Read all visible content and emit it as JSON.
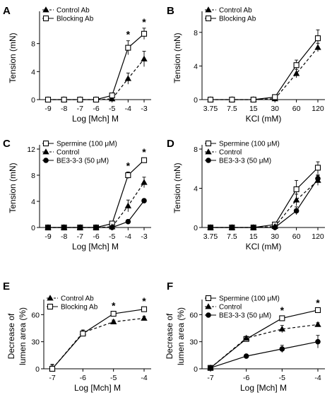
{
  "chart_data": [
    {
      "panel": "A",
      "type": "line",
      "xlabel": "Log [Mch] M",
      "ylabel": "Tension (mN)",
      "categories": [
        "-9",
        "-8",
        "-7",
        "-6",
        "-5",
        "-4",
        "-3"
      ],
      "ylim": [
        0,
        12
      ],
      "yticks": [
        0,
        4,
        8
      ],
      "legend": "top-left",
      "series": [
        {
          "name": "Control Ab",
          "marker": "triangle",
          "style": "dashed",
          "values": [
            0,
            0,
            0,
            0,
            0.1,
            3.0,
            5.8
          ],
          "errors": [
            0,
            0,
            0,
            0,
            0.1,
            0.8,
            1.1
          ]
        },
        {
          "name": "Blocking Ab",
          "marker": "square",
          "style": "solid",
          "values": [
            0,
            0,
            0,
            0,
            0.6,
            7.4,
            9.4
          ],
          "errors": [
            0,
            0,
            0,
            0,
            0.3,
            1.0,
            0.8
          ]
        }
      ],
      "significance": [
        {
          "x": "-4",
          "label": "*"
        },
        {
          "x": "-3",
          "label": "*"
        }
      ]
    },
    {
      "panel": "B",
      "type": "line",
      "xlabel": "KCl (mM)",
      "ylabel": "Tension (mN)",
      "categories": [
        "3.75",
        "7.5",
        "15",
        "30",
        "60",
        "120"
      ],
      "ylim": [
        0,
        10
      ],
      "yticks": [
        0,
        4,
        8
      ],
      "legend": "top-left",
      "series": [
        {
          "name": "Control Ab",
          "marker": "triangle",
          "style": "dashed",
          "values": [
            0,
            0,
            0,
            0.1,
            3.1,
            6.2
          ],
          "errors": [
            0,
            0,
            0,
            0.1,
            0.5,
            0.5
          ]
        },
        {
          "name": "Blocking Ab",
          "marker": "square",
          "style": "solid",
          "values": [
            0,
            0,
            0,
            0.3,
            4.1,
            7.3
          ],
          "errors": [
            0,
            0,
            0,
            0.2,
            0.6,
            1.0
          ]
        }
      ],
      "significance": []
    },
    {
      "panel": "C",
      "type": "line",
      "xlabel": "Log [Mch] M",
      "ylabel": "Tension (mN)",
      "categories": [
        "-9",
        "-8",
        "-7",
        "-6",
        "-5",
        "-4",
        "-3"
      ],
      "ylim": [
        0,
        12
      ],
      "yticks": [
        0,
        4,
        8,
        12
      ],
      "legend": "top-left",
      "series": [
        {
          "name": "Spermine (100 μM)",
          "marker": "square",
          "style": "solid",
          "values": [
            0,
            0,
            0,
            0,
            0.6,
            8.0,
            10.3
          ],
          "errors": [
            0,
            0,
            0,
            0,
            0.2,
            0.5,
            0.3
          ]
        },
        {
          "name": "Control",
          "marker": "triangle",
          "style": "dashed",
          "values": [
            0,
            0,
            0,
            0,
            0.1,
            3.3,
            6.9
          ],
          "errors": [
            0,
            0,
            0,
            0,
            0.1,
            0.9,
            0.8
          ]
        },
        {
          "name": "BE3-3-3 (50 μM)",
          "marker": "circle",
          "style": "solid",
          "values": [
            0,
            0,
            0,
            0,
            0,
            0.9,
            4.1
          ],
          "errors": [
            0,
            0,
            0,
            0,
            0,
            0.3,
            0.2
          ]
        }
      ],
      "significance": [
        {
          "x": "-4",
          "label": "*"
        },
        {
          "x": "-3",
          "label": "*"
        }
      ]
    },
    {
      "panel": "D",
      "type": "line",
      "xlabel": "KCl (mM)",
      "ylabel": "Tension (mN)",
      "categories": [
        "3.75",
        "7.5",
        "15",
        "30",
        "60",
        "120"
      ],
      "ylim": [
        0,
        8
      ],
      "yticks": [
        0,
        4,
        8
      ],
      "legend": "top-left",
      "series": [
        {
          "name": "Spermine (100 μM)",
          "marker": "square",
          "style": "solid",
          "values": [
            0,
            0,
            0,
            0.3,
            3.9,
            6.1
          ],
          "errors": [
            0,
            0,
            0,
            0.2,
            0.9,
            0.6
          ]
        },
        {
          "name": "Control",
          "marker": "triangle",
          "style": "dashed",
          "values": [
            0,
            0,
            0,
            0.1,
            2.8,
            4.8
          ],
          "errors": [
            0,
            0,
            0,
            0.1,
            0.6,
            0.5
          ]
        },
        {
          "name": "BE3-3-3 (50 μM)",
          "marker": "circle",
          "style": "solid",
          "values": [
            0,
            0,
            0,
            0,
            1.7,
            5.0
          ],
          "errors": [
            0,
            0,
            0,
            0,
            0.4,
            0.4
          ]
        }
      ],
      "significance": []
    },
    {
      "panel": "E",
      "type": "line",
      "xlabel": "Log [Mch] M",
      "ylabel": "Decrease of\nlumen area (%)",
      "categories": [
        "-7",
        "-6",
        "-5",
        "-4"
      ],
      "ylim": [
        0,
        72
      ],
      "yticks": [
        0,
        30,
        60
      ],
      "legend": "top-left",
      "series": [
        {
          "name": "Control Ab",
          "marker": "triangle",
          "style": "dashed",
          "values": [
            0,
            40,
            52,
            56
          ],
          "errors": [
            5,
            3,
            2,
            2
          ]
        },
        {
          "name": "Blocking Ab",
          "marker": "square",
          "style": "solid",
          "values": [
            0,
            39,
            61,
            66
          ],
          "errors": [
            4,
            3,
            2,
            2
          ]
        }
      ],
      "significance": [
        {
          "x": "-5",
          "label": "*"
        },
        {
          "x": "-4",
          "label": "*"
        }
      ]
    },
    {
      "panel": "F",
      "type": "line",
      "xlabel": "Log [Mch] M",
      "ylabel": "Decrease of\nlumen area (%)",
      "categories": [
        "-7",
        "-6",
        "-5",
        "-4"
      ],
      "ylim": [
        0,
        72
      ],
      "yticks": [
        0,
        30,
        60
      ],
      "legend": "top-left",
      "series": [
        {
          "name": "Spermine (100 μM)",
          "marker": "square",
          "style": "solid",
          "values": [
            1,
            33,
            56,
            65
          ],
          "errors": [
            1,
            2,
            2,
            1
          ]
        },
        {
          "name": "Control",
          "marker": "triangle",
          "style": "dashed",
          "values": [
            1,
            34,
            44,
            49
          ],
          "errors": [
            1,
            2,
            4,
            2
          ]
        },
        {
          "name": "BE3-3-3 (50 μM)",
          "marker": "circle",
          "style": "solid",
          "values": [
            1,
            14,
            22,
            30
          ],
          "errors": [
            1,
            1,
            4,
            7
          ]
        }
      ],
      "significance": [
        {
          "x": "-5",
          "label": "*"
        },
        {
          "x": "-4",
          "label": "*"
        }
      ]
    }
  ]
}
